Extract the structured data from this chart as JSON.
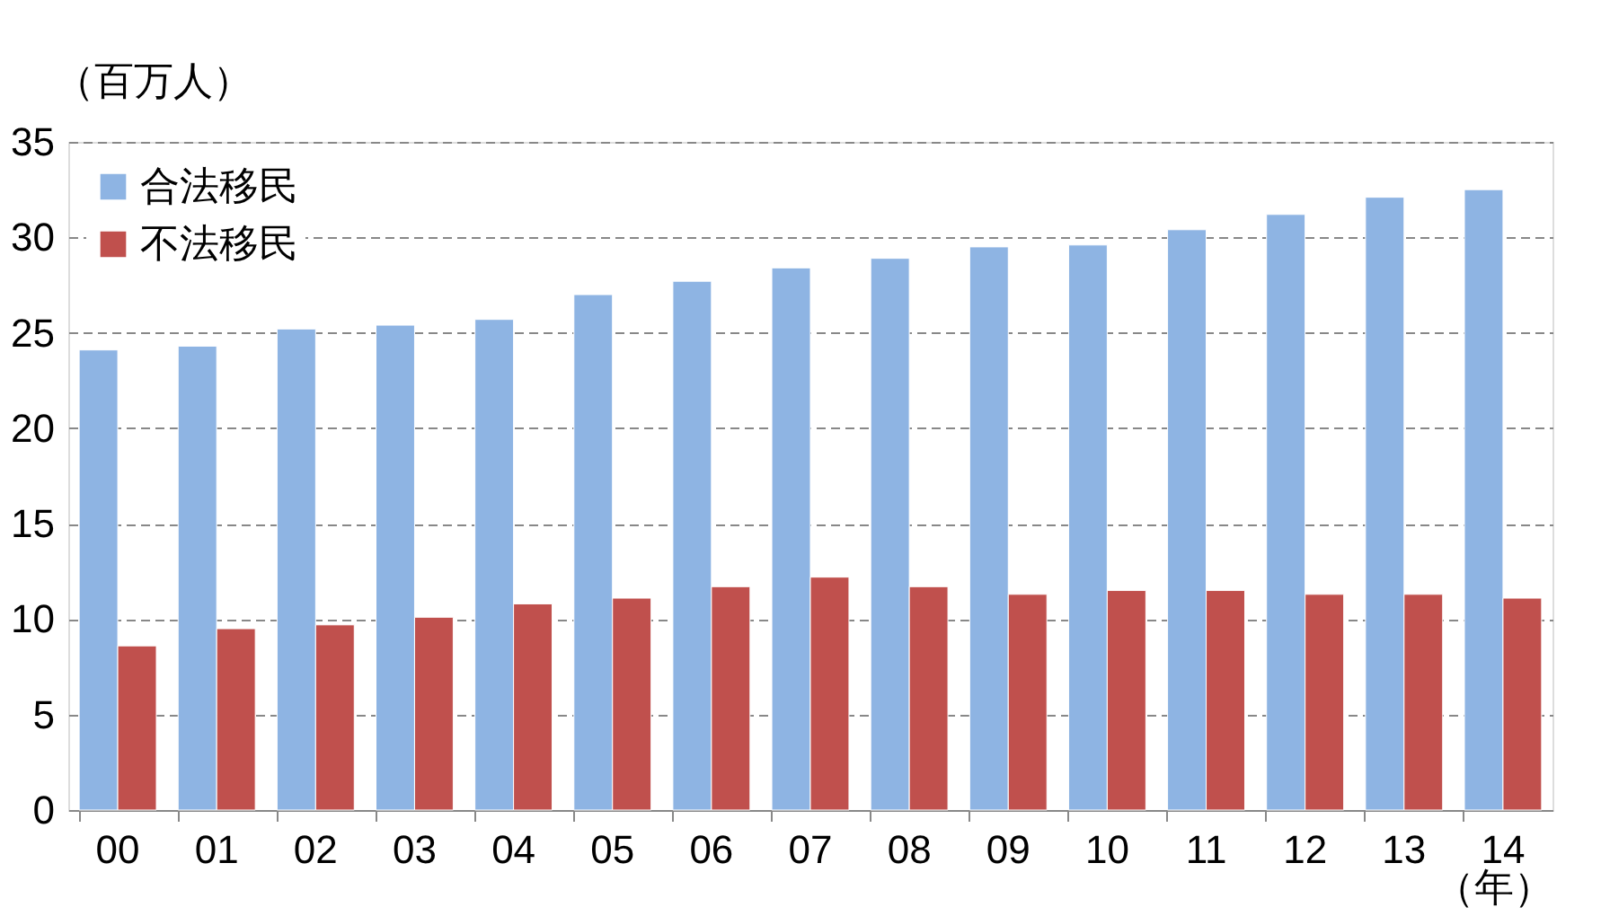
{
  "chart_data": {
    "type": "bar",
    "ylabel": "（百万人）",
    "xlabel": "（年）",
    "categories": [
      "00",
      "01",
      "02",
      "03",
      "04",
      "05",
      "06",
      "07",
      "08",
      "09",
      "10",
      "11",
      "12",
      "13",
      "14"
    ],
    "series": [
      {
        "name": "合法移民",
        "color": "#8eb4e3",
        "values": [
          24.1,
          24.3,
          25.2,
          25.4,
          25.7,
          27.0,
          27.7,
          28.4,
          28.9,
          29.5,
          29.6,
          30.4,
          31.2,
          32.1,
          32.5
        ]
      },
      {
        "name": "不法移民",
        "color": "#c0504d",
        "values": [
          8.6,
          9.5,
          9.7,
          10.1,
          10.8,
          11.1,
          11.7,
          12.2,
          11.7,
          11.3,
          11.5,
          11.5,
          11.3,
          11.3,
          11.1
        ]
      }
    ],
    "ylim": [
      0,
      35
    ],
    "yticks": [
      0,
      5,
      10,
      15,
      20,
      25,
      30,
      35
    ],
    "grid": "y",
    "legend": "top left"
  }
}
